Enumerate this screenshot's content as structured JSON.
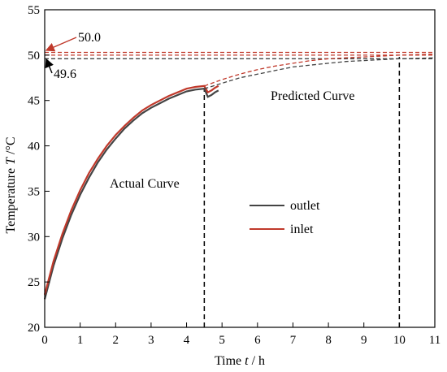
{
  "chart_data": {
    "type": "line",
    "xlabel_prefix": "Time ",
    "xlabel_var": "t",
    "xlabel_suffix": " / h",
    "ylabel_prefix": "Temperature ",
    "ylabel_var": "T",
    "ylabel_suffix": " /°C",
    "xlim": [
      0,
      11
    ],
    "ylim": [
      20,
      55
    ],
    "xticks": [
      0,
      1,
      2,
      3,
      4,
      5,
      6,
      7,
      8,
      9,
      10,
      11
    ],
    "yticks": [
      20,
      25,
      30,
      35,
      40,
      45,
      50,
      55
    ],
    "colors": {
      "outlet": "#444444",
      "inlet": "#c0392b",
      "annotation_50": "#c0392b",
      "annotation_496": "#000000"
    },
    "series": [
      {
        "name": "outlet",
        "kind": "measured",
        "x": [
          0,
          0.25,
          0.5,
          0.75,
          1.0,
          1.25,
          1.5,
          1.75,
          2.0,
          2.25,
          2.5,
          2.75,
          3.0,
          3.25,
          3.5,
          3.75,
          4.0,
          4.25,
          4.5,
          4.6,
          4.7,
          4.8,
          4.9
        ],
        "y": [
          23.1,
          26.8,
          29.8,
          32.4,
          34.6,
          36.5,
          38.2,
          39.6,
          40.8,
          41.9,
          42.8,
          43.6,
          44.2,
          44.7,
          45.2,
          45.6,
          46.0,
          46.2,
          46.3,
          45.4,
          45.6,
          45.9,
          46.1
        ]
      },
      {
        "name": "inlet",
        "kind": "measured",
        "x": [
          0,
          0.25,
          0.5,
          0.75,
          1.0,
          1.25,
          1.5,
          1.75,
          2.0,
          2.25,
          2.5,
          2.75,
          3.0,
          3.25,
          3.5,
          3.75,
          4.0,
          4.25,
          4.5,
          4.6,
          4.7,
          4.8,
          4.9
        ],
        "y": [
          23.6,
          27.3,
          30.3,
          32.9,
          35.1,
          37.0,
          38.6,
          40.0,
          41.2,
          42.2,
          43.1,
          43.9,
          44.5,
          45.0,
          45.5,
          45.9,
          46.3,
          46.5,
          46.6,
          45.9,
          46.1,
          46.4,
          46.6
        ]
      },
      {
        "name": "outlet",
        "kind": "predicted",
        "x": [
          4.5,
          5.0,
          5.5,
          6.0,
          6.5,
          7.0,
          7.5,
          8.0,
          8.5,
          9.0,
          9.5,
          10.0,
          10.5,
          11.0
        ],
        "y": [
          46.3,
          46.9,
          47.5,
          47.9,
          48.3,
          48.7,
          48.9,
          49.1,
          49.3,
          49.4,
          49.5,
          49.6,
          49.65,
          49.7
        ]
      },
      {
        "name": "inlet",
        "kind": "predicted",
        "x": [
          4.5,
          5.0,
          5.5,
          6.0,
          6.5,
          7.0,
          7.5,
          8.0,
          8.5,
          9.0,
          9.5,
          10.0,
          10.5,
          11.0
        ],
        "y": [
          46.6,
          47.3,
          47.9,
          48.4,
          48.8,
          49.1,
          49.4,
          49.6,
          49.7,
          49.8,
          49.9,
          50.0,
          50.05,
          50.1
        ]
      }
    ],
    "horizontal_lines": [
      {
        "y": 50.0,
        "color": "#c0392b"
      },
      {
        "y": 50.3,
        "color": "#c0392b"
      },
      {
        "y": 49.6,
        "color": "#444444"
      }
    ],
    "vertical_lines": [
      4.5,
      10
    ],
    "annotations": [
      {
        "text": "50.0",
        "x": 0,
        "y": 50.0
      },
      {
        "text": "49.6",
        "x": 0,
        "y": 49.6
      },
      {
        "text": "Predicted Curve"
      },
      {
        "text": "Actual Curve"
      }
    ],
    "legend": [
      "outlet",
      "inlet"
    ],
    "legend_position": "center-right",
    "grid": false
  }
}
